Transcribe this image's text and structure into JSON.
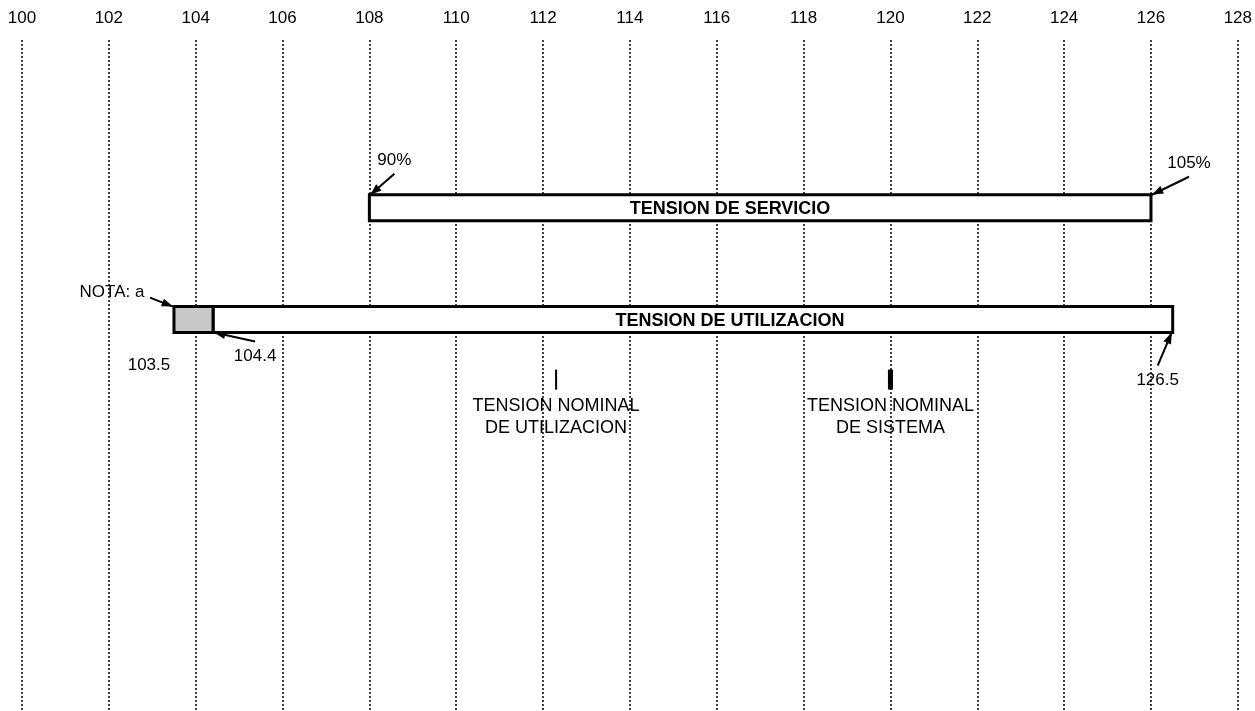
{
  "chart_data": {
    "type": "bar",
    "orientation": "horizontal",
    "categories": [
      "TENSION DE SERVICIO",
      "TENSION DE UTILIZACION"
    ],
    "series": [
      {
        "color": "#ffffff",
        "base": [
          108,
          104.4
        ],
        "values": [
          18,
          22.1
        ]
      },
      {
        "color": "#c8c8c8",
        "base": [
          null,
          103.5
        ],
        "values": [
          null,
          0.9
        ]
      }
    ],
    "xlim": [
      100,
      128
    ],
    "xticks": [
      100,
      102,
      104,
      106,
      108,
      110,
      112,
      114,
      116,
      118,
      120,
      122,
      124,
      126,
      128
    ],
    "grid": "x",
    "ref_lines": [
      {
        "axis": "x",
        "value": 112.3,
        "label": "TENSION NOMINAL\nDE UTILIZACION"
      },
      {
        "axis": "x",
        "value": 120,
        "label": "TENSION NOMINAL\nDE SISTEMA"
      }
    ],
    "annotations": [
      {
        "text": "90%",
        "x": 108,
        "y": "TENSION DE SERVICIO"
      },
      {
        "text": "105%",
        "x": 126,
        "y": "TENSION DE SERVICIO"
      },
      {
        "text": "NOTA: a",
        "x": 103.5,
        "y": "TENSION DE UTILIZACION"
      },
      {
        "text": "103.5",
        "x": 103.5,
        "y": "TENSION DE UTILIZACION"
      },
      {
        "text": "104.4",
        "x": 104.4,
        "y": "TENSION DE UTILIZACION"
      },
      {
        "text": "126.5",
        "x": 126.5,
        "y": "TENSION DE UTILIZACION"
      }
    ]
  }
}
